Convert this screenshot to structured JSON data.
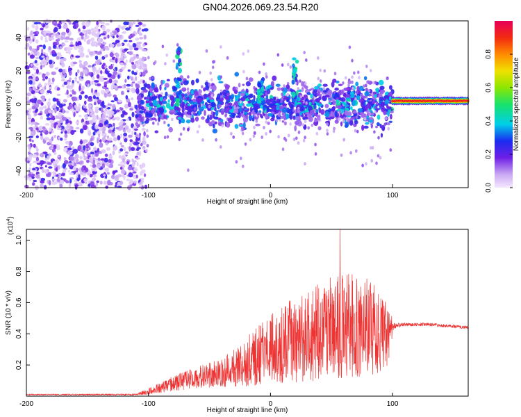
{
  "title": "GN04.2026.069.23.54.R20",
  "chart_data": [
    {
      "type": "heatmap",
      "title": "GN04.2026.069.23.54.R20",
      "xlabel": "Height of straight line (km)",
      "ylabel": "Frequency (Hz)",
      "xlim": [
        -200,
        162
      ],
      "ylim": [
        -50,
        50
      ],
      "xticks": [
        -200,
        -100,
        0,
        100
      ],
      "xtick_labels": [
        "-200",
        "-100",
        "0",
        "100"
      ],
      "yticks": [
        -40,
        -20,
        0,
        20,
        40
      ],
      "ytick_labels": [
        "-40",
        "-20",
        "0",
        "20",
        "40"
      ],
      "colorbar": {
        "label": "Normalized spectral amplitude",
        "range": [
          0,
          1
        ],
        "ticks": [
          0.0,
          0.2,
          0.4,
          0.6,
          0.8
        ],
        "tick_labels": [
          "0.0",
          "0.2",
          "0.4",
          "0.6",
          "0.8"
        ]
      },
      "regions": [
        {
          "name": "background noise",
          "x": [
            -200,
            -102
          ],
          "amplitude": 0.2
        },
        {
          "name": "band",
          "x": [
            -110,
            100
          ],
          "center_hz": 0,
          "spread_hz": 12
        },
        {
          "name": "steady line",
          "x": [
            100,
            162
          ],
          "center_hz": 2,
          "amplitude": 0.95
        }
      ],
      "features": [
        {
          "name": "spike",
          "x_km": -75,
          "f_hz": 33
        },
        {
          "name": "spike",
          "x_km": -8,
          "f_hz": 15
        },
        {
          "name": "spike",
          "x_km": 20,
          "f_hz": 28
        }
      ]
    },
    {
      "type": "line",
      "xlabel": "Height of straight line (km)",
      "ylabel": "SNR (10 * v/v)",
      "exponent_label": "(x10",
      "exponent_sup": "4",
      "exponent_close": ")",
      "xlim": [
        -200,
        162
      ],
      "ylim": [
        0,
        1.07
      ],
      "xticks": [
        -200,
        -100,
        0,
        100
      ],
      "xtick_labels": [
        "-200",
        "-100",
        "0",
        "100"
      ],
      "yticks": [
        0.2,
        0.4,
        0.6,
        0.8,
        1.0
      ],
      "ytick_labels": [
        "0.2",
        "0.4",
        "0.6",
        "0.8",
        "1.0"
      ],
      "color": "#ee3333",
      "series": [
        {
          "name": "SNR",
          "envelope_x": [
            -200,
            -110,
            -100,
            -80,
            -60,
            -40,
            -20,
            0,
            20,
            40,
            60,
            80,
            95,
            101,
            110,
            130,
            162
          ],
          "envelope_mean": [
            0.01,
            0.01,
            0.03,
            0.08,
            0.12,
            0.15,
            0.22,
            0.3,
            0.36,
            0.42,
            0.45,
            0.45,
            0.38,
            0.45,
            0.46,
            0.46,
            0.44
          ],
          "envelope_amp": [
            0.004,
            0.005,
            0.02,
            0.05,
            0.07,
            0.09,
            0.16,
            0.22,
            0.28,
            0.32,
            0.34,
            0.32,
            0.24,
            0.02,
            0.01,
            0.01,
            0.01
          ],
          "peak_value": 1.07,
          "peak_x": 57
        }
      ]
    }
  ]
}
